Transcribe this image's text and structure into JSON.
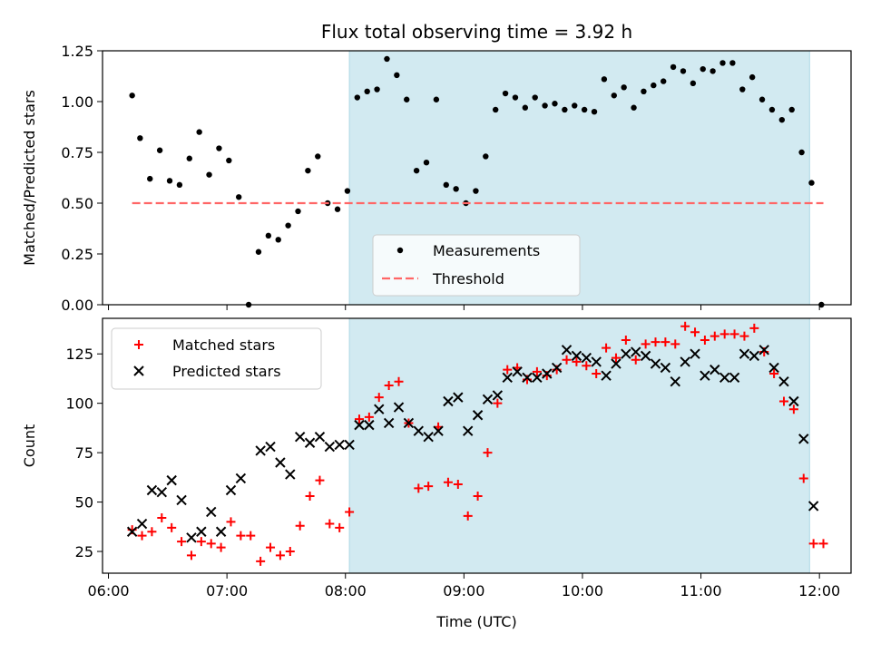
{
  "chart_data": [
    {
      "type": "scatter",
      "title": "Flux total observing time = 3.92 h",
      "xlabel": "",
      "ylabel": "Matched/Predicted stars",
      "xlim": [
        "05:57",
        "12:16"
      ],
      "ylim": [
        0,
        1.25
      ],
      "yticks": [
        "0.00",
        "0.25",
        "0.50",
        "0.75",
        "1.00",
        "1.25"
      ],
      "highlight_span": [
        "08:02",
        "11:55"
      ],
      "highlight_color": "#add8e6",
      "legend_position": "lower-center",
      "series": [
        {
          "name": "Measurements",
          "marker": "dot",
          "color": "#000000",
          "points": [
            [
              "06:12",
              1.03
            ],
            [
              "06:16",
              0.82
            ],
            [
              "06:21",
              0.62
            ],
            [
              "06:26",
              0.76
            ],
            [
              "06:31",
              0.61
            ],
            [
              "06:36",
              0.59
            ],
            [
              "06:41",
              0.72
            ],
            [
              "06:46",
              0.85
            ],
            [
              "06:51",
              0.64
            ],
            [
              "06:56",
              0.77
            ],
            [
              "07:01",
              0.71
            ],
            [
              "07:06",
              0.53
            ],
            [
              "07:11",
              0.0
            ],
            [
              "07:16",
              0.26
            ],
            [
              "07:21",
              0.34
            ],
            [
              "07:26",
              0.32
            ],
            [
              "07:31",
              0.39
            ],
            [
              "07:36",
              0.46
            ],
            [
              "07:41",
              0.66
            ],
            [
              "07:46",
              0.73
            ],
            [
              "07:51",
              0.5
            ],
            [
              "07:56",
              0.47
            ],
            [
              "08:01",
              0.56
            ],
            [
              "08:06",
              1.02
            ],
            [
              "08:11",
              1.05
            ],
            [
              "08:16",
              1.06
            ],
            [
              "08:21",
              1.21
            ],
            [
              "08:26",
              1.13
            ],
            [
              "08:31",
              1.01
            ],
            [
              "08:36",
              0.66
            ],
            [
              "08:41",
              0.7
            ],
            [
              "08:46",
              1.01
            ],
            [
              "08:51",
              0.59
            ],
            [
              "08:56",
              0.57
            ],
            [
              "09:01",
              0.5
            ],
            [
              "09:06",
              0.56
            ],
            [
              "09:11",
              0.73
            ],
            [
              "09:16",
              0.96
            ],
            [
              "09:21",
              1.04
            ],
            [
              "09:26",
              1.02
            ],
            [
              "09:31",
              0.97
            ],
            [
              "09:36",
              1.02
            ],
            [
              "09:41",
              0.98
            ],
            [
              "09:46",
              0.99
            ],
            [
              "09:51",
              0.96
            ],
            [
              "09:56",
              0.98
            ],
            [
              "10:01",
              0.96
            ],
            [
              "10:06",
              0.95
            ],
            [
              "10:11",
              1.11
            ],
            [
              "10:16",
              1.03
            ],
            [
              "10:21",
              1.07
            ],
            [
              "10:26",
              0.97
            ],
            [
              "10:31",
              1.05
            ],
            [
              "10:36",
              1.08
            ],
            [
              "10:41",
              1.1
            ],
            [
              "10:46",
              1.17
            ],
            [
              "10:51",
              1.15
            ],
            [
              "10:56",
              1.09
            ],
            [
              "11:01",
              1.16
            ],
            [
              "11:06",
              1.15
            ],
            [
              "11:11",
              1.19
            ],
            [
              "11:16",
              1.19
            ],
            [
              "11:21",
              1.06
            ],
            [
              "11:26",
              1.12
            ],
            [
              "11:31",
              1.01
            ],
            [
              "11:36",
              0.96
            ],
            [
              "11:41",
              0.91
            ],
            [
              "11:46",
              0.96
            ],
            [
              "11:51",
              0.75
            ],
            [
              "11:56",
              0.6
            ],
            [
              "12:01",
              0.0
            ]
          ]
        },
        {
          "name": "Threshold",
          "style": "dashed-line",
          "color": "#ff6666",
          "points": [
            [
              "06:12",
              0.5
            ],
            [
              "12:02",
              0.5
            ]
          ]
        }
      ]
    },
    {
      "type": "scatter",
      "title": "",
      "xlabel": "Time (UTC)",
      "ylabel": "Count",
      "xlim": [
        "05:57",
        "12:16"
      ],
      "ylim": [
        14,
        143
      ],
      "xticks": [
        "06:00",
        "07:00",
        "08:00",
        "09:00",
        "10:00",
        "11:00",
        "12:00"
      ],
      "yticks": [
        "25",
        "50",
        "75",
        "100",
        "125"
      ],
      "highlight_span": [
        "08:02",
        "11:55"
      ],
      "highlight_color": "#add8e6",
      "legend_position": "upper-left",
      "series": [
        {
          "name": "Matched stars",
          "marker": "plus",
          "color": "#ff0000",
          "points": [
            [
              "06:12",
              36
            ],
            [
              "06:17",
              33
            ],
            [
              "06:22",
              35
            ],
            [
              "06:27",
              42
            ],
            [
              "06:32",
              37
            ],
            [
              "06:37",
              30
            ],
            [
              "06:42",
              23
            ],
            [
              "06:47",
              30
            ],
            [
              "06:52",
              29
            ],
            [
              "06:57",
              27
            ],
            [
              "07:02",
              40
            ],
            [
              "07:07",
              33
            ],
            [
              "07:12",
              33
            ],
            [
              "07:17",
              20
            ],
            [
              "07:22",
              27
            ],
            [
              "07:27",
              23
            ],
            [
              "07:32",
              25
            ],
            [
              "07:37",
              38
            ],
            [
              "07:42",
              53
            ],
            [
              "07:47",
              61
            ],
            [
              "07:52",
              39
            ],
            [
              "07:57",
              37
            ],
            [
              "08:02",
              45
            ],
            [
              "08:07",
              92
            ],
            [
              "08:12",
              93
            ],
            [
              "08:17",
              103
            ],
            [
              "08:22",
              109
            ],
            [
              "08:27",
              111
            ],
            [
              "08:32",
              90
            ],
            [
              "08:37",
              57
            ],
            [
              "08:42",
              58
            ],
            [
              "08:47",
              88
            ],
            [
              "08:52",
              60
            ],
            [
              "08:57",
              59
            ],
            [
              "09:02",
              43
            ],
            [
              "09:07",
              53
            ],
            [
              "09:12",
              75
            ],
            [
              "09:17",
              100
            ],
            [
              "09:22",
              117
            ],
            [
              "09:27",
              118
            ],
            [
              "09:32",
              112
            ],
            [
              "09:37",
              116
            ],
            [
              "09:42",
              114
            ],
            [
              "09:47",
              117
            ],
            [
              "09:52",
              122
            ],
            [
              "09:57",
              121
            ],
            [
              "10:02",
              119
            ],
            [
              "10:07",
              115
            ],
            [
              "10:12",
              128
            ],
            [
              "10:17",
              123
            ],
            [
              "10:22",
              132
            ],
            [
              "10:27",
              122
            ],
            [
              "10:32",
              130
            ],
            [
              "10:37",
              131
            ],
            [
              "10:42",
              131
            ],
            [
              "10:47",
              130
            ],
            [
              "10:52",
              139
            ],
            [
              "10:57",
              136
            ],
            [
              "11:02",
              132
            ],
            [
              "11:07",
              134
            ],
            [
              "11:12",
              135
            ],
            [
              "11:17",
              135
            ],
            [
              "11:22",
              134
            ],
            [
              "11:27",
              138
            ],
            [
              "11:32",
              126
            ],
            [
              "11:37",
              115
            ],
            [
              "11:42",
              101
            ],
            [
              "11:47",
              97
            ],
            [
              "11:52",
              62
            ],
            [
              "11:57",
              29
            ],
            [
              "12:02",
              29
            ]
          ]
        },
        {
          "name": "Predicted stars",
          "marker": "x",
          "color": "#000000",
          "points": [
            [
              "06:12",
              35
            ],
            [
              "06:17",
              39
            ],
            [
              "06:22",
              56
            ],
            [
              "06:27",
              55
            ],
            [
              "06:32",
              61
            ],
            [
              "06:37",
              51
            ],
            [
              "06:42",
              32
            ],
            [
              "06:47",
              35
            ],
            [
              "06:52",
              45
            ],
            [
              "06:57",
              35
            ],
            [
              "07:02",
              56
            ],
            [
              "07:07",
              62
            ],
            [
              "07:17",
              76
            ],
            [
              "07:22",
              78
            ],
            [
              "07:27",
              70
            ],
            [
              "07:32",
              64
            ],
            [
              "07:37",
              83
            ],
            [
              "07:42",
              80
            ],
            [
              "07:47",
              83
            ],
            [
              "07:52",
              78
            ],
            [
              "07:57",
              79
            ],
            [
              "08:02",
              79
            ],
            [
              "08:07",
              89
            ],
            [
              "08:12",
              89
            ],
            [
              "08:17",
              97
            ],
            [
              "08:22",
              90
            ],
            [
              "08:27",
              98
            ],
            [
              "08:32",
              90
            ],
            [
              "08:37",
              86
            ],
            [
              "08:42",
              83
            ],
            [
              "08:47",
              86
            ],
            [
              "08:52",
              101
            ],
            [
              "08:57",
              103
            ],
            [
              "09:02",
              86
            ],
            [
              "09:07",
              94
            ],
            [
              "09:12",
              102
            ],
            [
              "09:17",
              104
            ],
            [
              "09:22",
              113
            ],
            [
              "09:27",
              116
            ],
            [
              "09:32",
              113
            ],
            [
              "09:37",
              113
            ],
            [
              "09:42",
              115
            ],
            [
              "09:47",
              118
            ],
            [
              "09:52",
              127
            ],
            [
              "09:57",
              124
            ],
            [
              "10:02",
              123
            ],
            [
              "10:07",
              121
            ],
            [
              "10:12",
              114
            ],
            [
              "10:17",
              120
            ],
            [
              "10:22",
              125
            ],
            [
              "10:27",
              126
            ],
            [
              "10:32",
              124
            ],
            [
              "10:37",
              120
            ],
            [
              "10:42",
              118
            ],
            [
              "10:47",
              111
            ],
            [
              "10:52",
              121
            ],
            [
              "10:57",
              125
            ],
            [
              "11:02",
              114
            ],
            [
              "11:07",
              117
            ],
            [
              "11:12",
              113
            ],
            [
              "11:17",
              113
            ],
            [
              "11:22",
              125
            ],
            [
              "11:27",
              124
            ],
            [
              "11:32",
              127
            ],
            [
              "11:37",
              118
            ],
            [
              "11:42",
              111
            ],
            [
              "11:47",
              101
            ],
            [
              "11:52",
              82
            ],
            [
              "11:57",
              48
            ]
          ]
        }
      ]
    }
  ]
}
